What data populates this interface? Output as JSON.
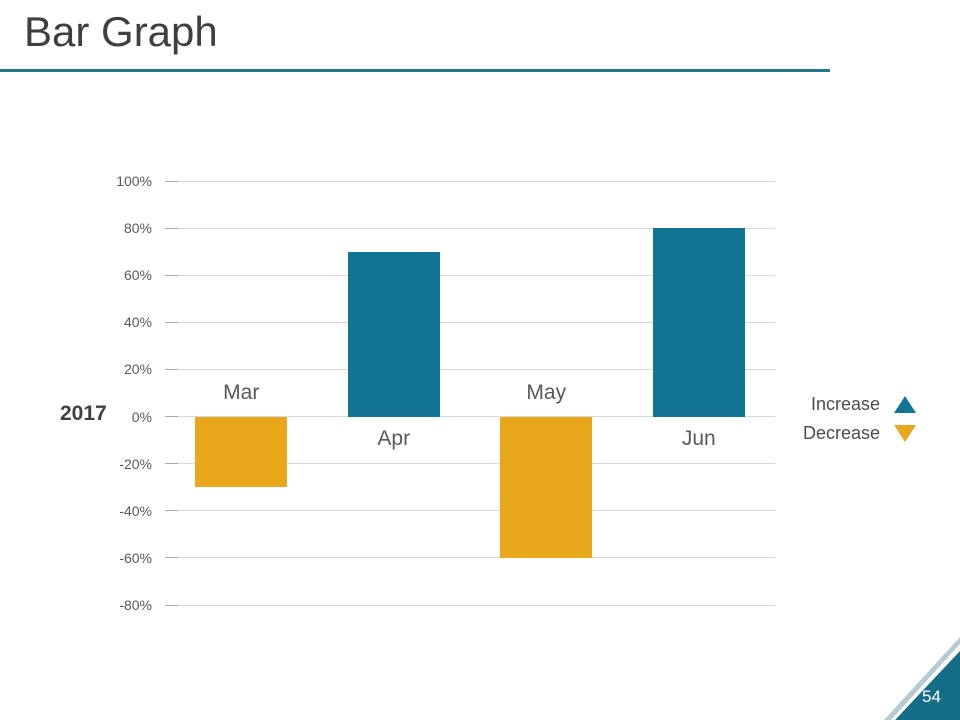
{
  "page": {
    "title": "Bar Graph",
    "page_number": "54"
  },
  "chart_data": {
    "type": "bar",
    "title": "Bar Graph",
    "year_label": "2017",
    "categories": [
      "Mar",
      "Apr",
      "May",
      "Jun"
    ],
    "values": [
      -30,
      70,
      -60,
      80
    ],
    "unit": "%",
    "ylim": [
      -80,
      100
    ],
    "grid": true,
    "legend_position": "right",
    "yticks": [
      {
        "value": 100,
        "label": "100%"
      },
      {
        "value": 80,
        "label": "80%"
      },
      {
        "value": 60,
        "label": "60%"
      },
      {
        "value": 40,
        "label": "40%"
      },
      {
        "value": 20,
        "label": "20%"
      },
      {
        "value": 0,
        "label": "0%"
      },
      {
        "value": -20,
        "label": "-20%"
      },
      {
        "value": -40,
        "label": "-40%"
      },
      {
        "value": -60,
        "label": "-60%"
      },
      {
        "value": -80,
        "label": "-80%"
      }
    ],
    "series_colors": {
      "positive": "#107693",
      "negative": "#e9a71b"
    },
    "legend": [
      {
        "label": "Increase",
        "marker": "triangle-up-icon",
        "color": "#107693"
      },
      {
        "label": "Decrease",
        "marker": "triangle-down-icon",
        "color": "#e9a71b"
      }
    ]
  },
  "theme": {
    "divider_color": "#1f7a85",
    "corner_triangle_color": "#156e88",
    "corner_stripe_color": "#b5cbd2",
    "title_color": "#3f3f3f",
    "axis_label_color": "#595959",
    "gridline_color": "#d9d9d9"
  }
}
